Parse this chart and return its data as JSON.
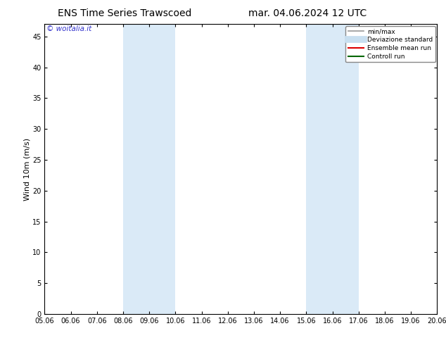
{
  "title_left": "ENS Time Series Trawscoed",
  "title_right": "mar. 04.06.2024 12 UTC",
  "ylabel": "Wind 10m (m/s)",
  "watermark": "© woitalia.it",
  "x_start": 5.06,
  "x_end": 20.06,
  "x_ticks": [
    5.06,
    6.06,
    7.06,
    8.06,
    9.06,
    10.06,
    11.06,
    12.06,
    13.06,
    14.06,
    15.06,
    16.06,
    17.06,
    18.06,
    19.06,
    20.06
  ],
  "x_tick_labels": [
    "05.06",
    "06.06",
    "07.06",
    "08.06",
    "09.06",
    "10.06",
    "11.06",
    "12.06",
    "13.06",
    "14.06",
    "15.06",
    "16.06",
    "17.06",
    "18.06",
    "19.06",
    "20.06"
  ],
  "ylim": [
    0,
    47
  ],
  "y_ticks": [
    0,
    5,
    10,
    15,
    20,
    25,
    30,
    35,
    40,
    45
  ],
  "shaded_bands": [
    {
      "xmin": 8.06,
      "xmax": 10.06,
      "color": "#daeaf7"
    },
    {
      "xmin": 15.06,
      "xmax": 17.06,
      "color": "#daeaf7"
    }
  ],
  "legend_entries": [
    {
      "label": "min/max",
      "color": "#999999",
      "lw": 1.2,
      "ls": "-"
    },
    {
      "label": "Deviazione standard",
      "color": "#c8dff0",
      "lw": 7,
      "ls": "-"
    },
    {
      "label": "Ensemble mean run",
      "color": "#dd0000",
      "lw": 1.5,
      "ls": "-"
    },
    {
      "label": "Controll run",
      "color": "#006600",
      "lw": 1.5,
      "ls": "-"
    }
  ],
  "bg_color": "#ffffff",
  "spine_color": "#000000",
  "title_fontsize": 10,
  "tick_fontsize": 7,
  "ylabel_fontsize": 8,
  "watermark_color": "#3333cc",
  "watermark_fontsize": 7.5
}
